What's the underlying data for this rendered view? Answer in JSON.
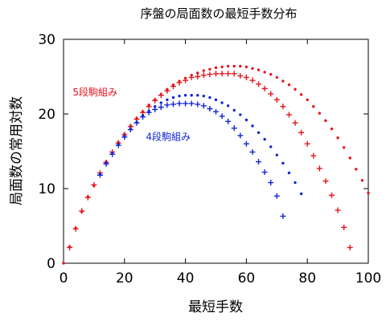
{
  "chart_data": {
    "type": "scatter",
    "title": "序盤の局面数の最短手数分布",
    "xlabel": "最短手数",
    "ylabel": "局面数の常用対数",
    "xlim": [
      0,
      100
    ],
    "ylim": [
      0,
      30
    ],
    "xticks": [
      0,
      20,
      40,
      60,
      80,
      100
    ],
    "yticks": [
      0,
      10,
      20,
      30
    ],
    "grid": false,
    "series": [
      {
        "name": "5段駒組み (+)",
        "color": "#e8141e",
        "marker": "plus",
        "points": [
          [
            2,
            2.1
          ],
          [
            4,
            4.6
          ],
          [
            6,
            7.0
          ],
          [
            8,
            8.8
          ],
          [
            10,
            10.5
          ],
          [
            12,
            12.1
          ],
          [
            14,
            13.5
          ],
          [
            16,
            14.9
          ],
          [
            18,
            16.1
          ],
          [
            20,
            17.2
          ],
          [
            22,
            18.3
          ],
          [
            24,
            19.3
          ],
          [
            26,
            20.2
          ],
          [
            28,
            21.0
          ],
          [
            30,
            21.8
          ],
          [
            32,
            22.5
          ],
          [
            34,
            23.1
          ],
          [
            36,
            23.7
          ],
          [
            38,
            24.2
          ],
          [
            40,
            24.5
          ],
          [
            42,
            24.9
          ],
          [
            44,
            25.0
          ],
          [
            46,
            25.2
          ],
          [
            48,
            25.3
          ],
          [
            50,
            25.4
          ],
          [
            52,
            25.4
          ],
          [
            54,
            25.4
          ],
          [
            56,
            25.4
          ],
          [
            58,
            25.1
          ],
          [
            60,
            24.9
          ],
          [
            62,
            24.5
          ],
          [
            64,
            24.0
          ],
          [
            66,
            23.4
          ],
          [
            68,
            22.7
          ],
          [
            70,
            21.9
          ],
          [
            72,
            21.0
          ],
          [
            74,
            19.9
          ],
          [
            76,
            18.8
          ],
          [
            78,
            17.5
          ],
          [
            80,
            16.0
          ],
          [
            82,
            14.4
          ],
          [
            84,
            12.7
          ],
          [
            86,
            11.0
          ],
          [
            88,
            9.1
          ],
          [
            90,
            7.1
          ],
          [
            92,
            4.8
          ],
          [
            94,
            2.1
          ]
        ]
      },
      {
        "name": "5段駒組み (•)",
        "color": "#e8141e",
        "marker": "dot",
        "points": [
          [
            0,
            0
          ],
          [
            2,
            2.2
          ],
          [
            4,
            4.7
          ],
          [
            6,
            6.9
          ],
          [
            8,
            8.9
          ],
          [
            10,
            10.4
          ],
          [
            12,
            12.0
          ],
          [
            14,
            13.6
          ],
          [
            16,
            14.8
          ],
          [
            18,
            16.2
          ],
          [
            20,
            17.3
          ],
          [
            22,
            18.4
          ],
          [
            24,
            19.4
          ],
          [
            26,
            20.3
          ],
          [
            28,
            21.2
          ],
          [
            30,
            21.9
          ],
          [
            32,
            22.6
          ],
          [
            34,
            23.3
          ],
          [
            36,
            23.9
          ],
          [
            38,
            24.4
          ],
          [
            40,
            24.8
          ],
          [
            42,
            25.2
          ],
          [
            44,
            25.5
          ],
          [
            46,
            25.8
          ],
          [
            48,
            26.0
          ],
          [
            50,
            26.2
          ],
          [
            52,
            26.3
          ],
          [
            54,
            26.4
          ],
          [
            56,
            26.4
          ],
          [
            58,
            26.4
          ],
          [
            60,
            26.3
          ],
          [
            62,
            26.1
          ],
          [
            64,
            25.9
          ],
          [
            66,
            25.6
          ],
          [
            68,
            25.3
          ],
          [
            70,
            24.9
          ],
          [
            72,
            24.4
          ],
          [
            74,
            23.9
          ],
          [
            76,
            23.3
          ],
          [
            78,
            22.6
          ],
          [
            80,
            21.9
          ],
          [
            82,
            21.0
          ],
          [
            84,
            20.1
          ],
          [
            86,
            19.1
          ],
          [
            88,
            18.0
          ],
          [
            90,
            16.8
          ],
          [
            92,
            15.5
          ],
          [
            94,
            14.1
          ],
          [
            96,
            12.6
          ],
          [
            98,
            11.1
          ],
          [
            100,
            9.4
          ]
        ]
      },
      {
        "name": "4段駒組み (+)",
        "color": "#1226d6",
        "marker": "plus",
        "points": [
          [
            12,
            11.8
          ],
          [
            14,
            13.3
          ],
          [
            16,
            14.6
          ],
          [
            18,
            15.8
          ],
          [
            20,
            16.9
          ],
          [
            22,
            17.9
          ],
          [
            24,
            18.8
          ],
          [
            26,
            19.6
          ],
          [
            28,
            20.2
          ],
          [
            30,
            20.6
          ],
          [
            32,
            20.9
          ],
          [
            34,
            21.2
          ],
          [
            36,
            21.3
          ],
          [
            38,
            21.4
          ],
          [
            40,
            21.4
          ],
          [
            42,
            21.4
          ],
          [
            44,
            21.3
          ],
          [
            46,
            21.1
          ],
          [
            48,
            20.7
          ],
          [
            50,
            20.3
          ],
          [
            52,
            19.7
          ],
          [
            54,
            19.0
          ],
          [
            56,
            18.1
          ],
          [
            58,
            17.1
          ],
          [
            60,
            16.0
          ],
          [
            62,
            14.9
          ],
          [
            64,
            13.6
          ],
          [
            66,
            12.2
          ],
          [
            68,
            10.8
          ],
          [
            70,
            9.0
          ],
          [
            72,
            6.3
          ]
        ]
      },
      {
        "name": "4段駒組み (•)",
        "color": "#1226d6",
        "marker": "dot",
        "points": [
          [
            12,
            11.9
          ],
          [
            14,
            13.4
          ],
          [
            16,
            14.7
          ],
          [
            18,
            15.9
          ],
          [
            20,
            17.0
          ],
          [
            22,
            18.0
          ],
          [
            24,
            18.9
          ],
          [
            26,
            19.8
          ],
          [
            28,
            20.4
          ],
          [
            30,
            21.0
          ],
          [
            32,
            21.5
          ],
          [
            34,
            21.9
          ],
          [
            36,
            22.2
          ],
          [
            38,
            22.4
          ],
          [
            40,
            22.5
          ],
          [
            42,
            22.5
          ],
          [
            44,
            22.5
          ],
          [
            46,
            22.4
          ],
          [
            48,
            22.2
          ],
          [
            50,
            21.9
          ],
          [
            52,
            21.5
          ],
          [
            54,
            21.1
          ],
          [
            56,
            20.5
          ],
          [
            58,
            19.9
          ],
          [
            60,
            19.2
          ],
          [
            62,
            18.4
          ],
          [
            64,
            17.5
          ],
          [
            66,
            16.6
          ],
          [
            68,
            15.6
          ],
          [
            70,
            14.5
          ],
          [
            72,
            13.4
          ],
          [
            74,
            12.1
          ],
          [
            76,
            10.8
          ],
          [
            78,
            9.3
          ]
        ]
      }
    ],
    "annotations": [
      {
        "text": "5段駒組み",
        "color": "#e8141e",
        "x": 3,
        "y": 22.5
      },
      {
        "text": "4段駒組み",
        "color": "#1226d6",
        "x": 27,
        "y": 16.5
      }
    ]
  }
}
